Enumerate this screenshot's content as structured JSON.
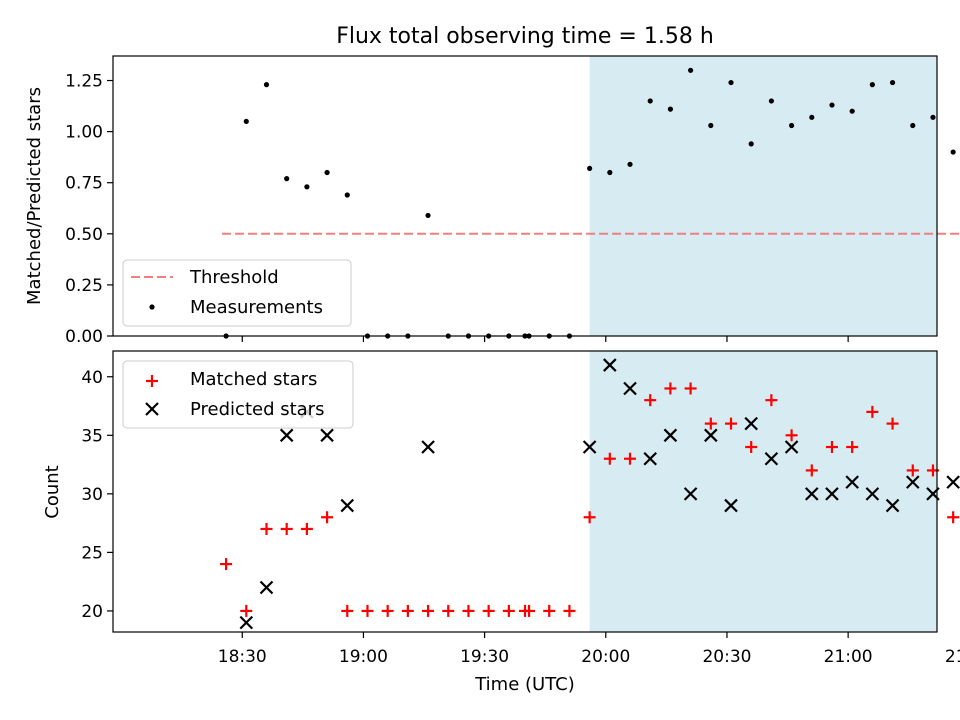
{
  "chart_data": {
    "title": "Flux total observing time = 1.58 h",
    "xlabel": "Time (UTC)",
    "x_unit": "minutes since 18:00 UTC",
    "xlim": [
      -2,
      202
    ],
    "xticks": [
      30,
      60,
      90,
      120,
      150,
      180,
      210
    ],
    "xtick_labels": [
      "18:30",
      "19:00",
      "19:30",
      "20:00",
      "20:30",
      "21:00",
      "21:30"
    ],
    "shaded_region": {
      "x_start": 116,
      "x_end": 211,
      "color": "#add8e6"
    },
    "top_panel": {
      "type": "scatter",
      "ylabel": "Matched/Predicted stars",
      "ylim": [
        0,
        1.37
      ],
      "yticks": [
        0,
        0.25,
        0.5,
        0.75,
        1.0,
        1.25
      ],
      "ytick_labels": [
        "0.00",
        "0.25",
        "0.50",
        "0.75",
        "1.00",
        "1.25"
      ],
      "threshold": {
        "name": "Threshold",
        "value": 0.5,
        "x_range": [
          25,
          211
        ],
        "color": "#f08080"
      },
      "series": [
        {
          "name": "Measurements",
          "color": "#000000",
          "x": [
            26,
            31,
            36,
            41,
            46,
            51,
            56,
            61,
            66,
            71,
            76,
            81,
            86,
            91,
            96,
            100,
            101,
            106,
            111,
            116,
            121,
            126,
            131,
            136,
            141,
            146,
            151,
            156,
            161,
            166,
            171,
            176,
            181,
            186,
            191,
            196,
            201,
            206,
            211
          ],
          "y": [
            0,
            1.05,
            1.23,
            0.77,
            0.73,
            0.8,
            0.69,
            0,
            0,
            0,
            0.59,
            0,
            0,
            0,
            0,
            0,
            0,
            0,
            0,
            0.82,
            0.8,
            0.84,
            1.15,
            1.11,
            1.3,
            1.03,
            1.24,
            0.94,
            1.15,
            1.03,
            1.07,
            1.13,
            1.1,
            1.23,
            1.24,
            1.03,
            1.07,
            0.9,
            0.91
          ]
        }
      ],
      "legend": {
        "location": "bottom-left",
        "entries": [
          "Threshold",
          "Measurements"
        ]
      }
    },
    "bottom_panel": {
      "type": "scatter",
      "ylabel": "Count",
      "ylim": [
        18.2,
        42.2
      ],
      "yticks": [
        20,
        25,
        30,
        35,
        40
      ],
      "ytick_labels": [
        "20",
        "25",
        "30",
        "35",
        "40"
      ],
      "series": [
        {
          "name": "Matched stars",
          "marker": "+",
          "color": "#ff0000",
          "x": [
            26,
            31,
            36,
            41,
            46,
            51,
            56,
            61,
            66,
            71,
            76,
            81,
            86,
            91,
            96,
            100,
            101,
            106,
            111,
            116,
            121,
            126,
            131,
            136,
            141,
            146,
            151,
            156,
            161,
            166,
            171,
            176,
            181,
            186,
            191,
            196,
            201,
            206,
            211
          ],
          "y": [
            24,
            20,
            27,
            27,
            27,
            28,
            20,
            20,
            20,
            20,
            20,
            20,
            20,
            20,
            20,
            20,
            20,
            20,
            20,
            28,
            33,
            33,
            38,
            39,
            39,
            36,
            36,
            34,
            38,
            35,
            32,
            34,
            34,
            37,
            36,
            32,
            32,
            28,
            30
          ]
        },
        {
          "name": "Predicted stars",
          "marker": "x",
          "color": "#000000",
          "x": [
            31,
            36,
            41,
            46,
            51,
            56,
            76,
            116,
            121,
            126,
            131,
            136,
            141,
            146,
            151,
            156,
            161,
            166,
            171,
            176,
            181,
            186,
            191,
            196,
            201,
            206,
            211
          ],
          "y": [
            19,
            22,
            35,
            37,
            35,
            29,
            34,
            34,
            41,
            39,
            33,
            35,
            30,
            35,
            29,
            36,
            33,
            34,
            30,
            30,
            31,
            30,
            29,
            31,
            30,
            31,
            33
          ]
        }
      ],
      "legend": {
        "location": "top-left",
        "entries": [
          "Matched stars",
          "Predicted stars"
        ]
      }
    }
  }
}
